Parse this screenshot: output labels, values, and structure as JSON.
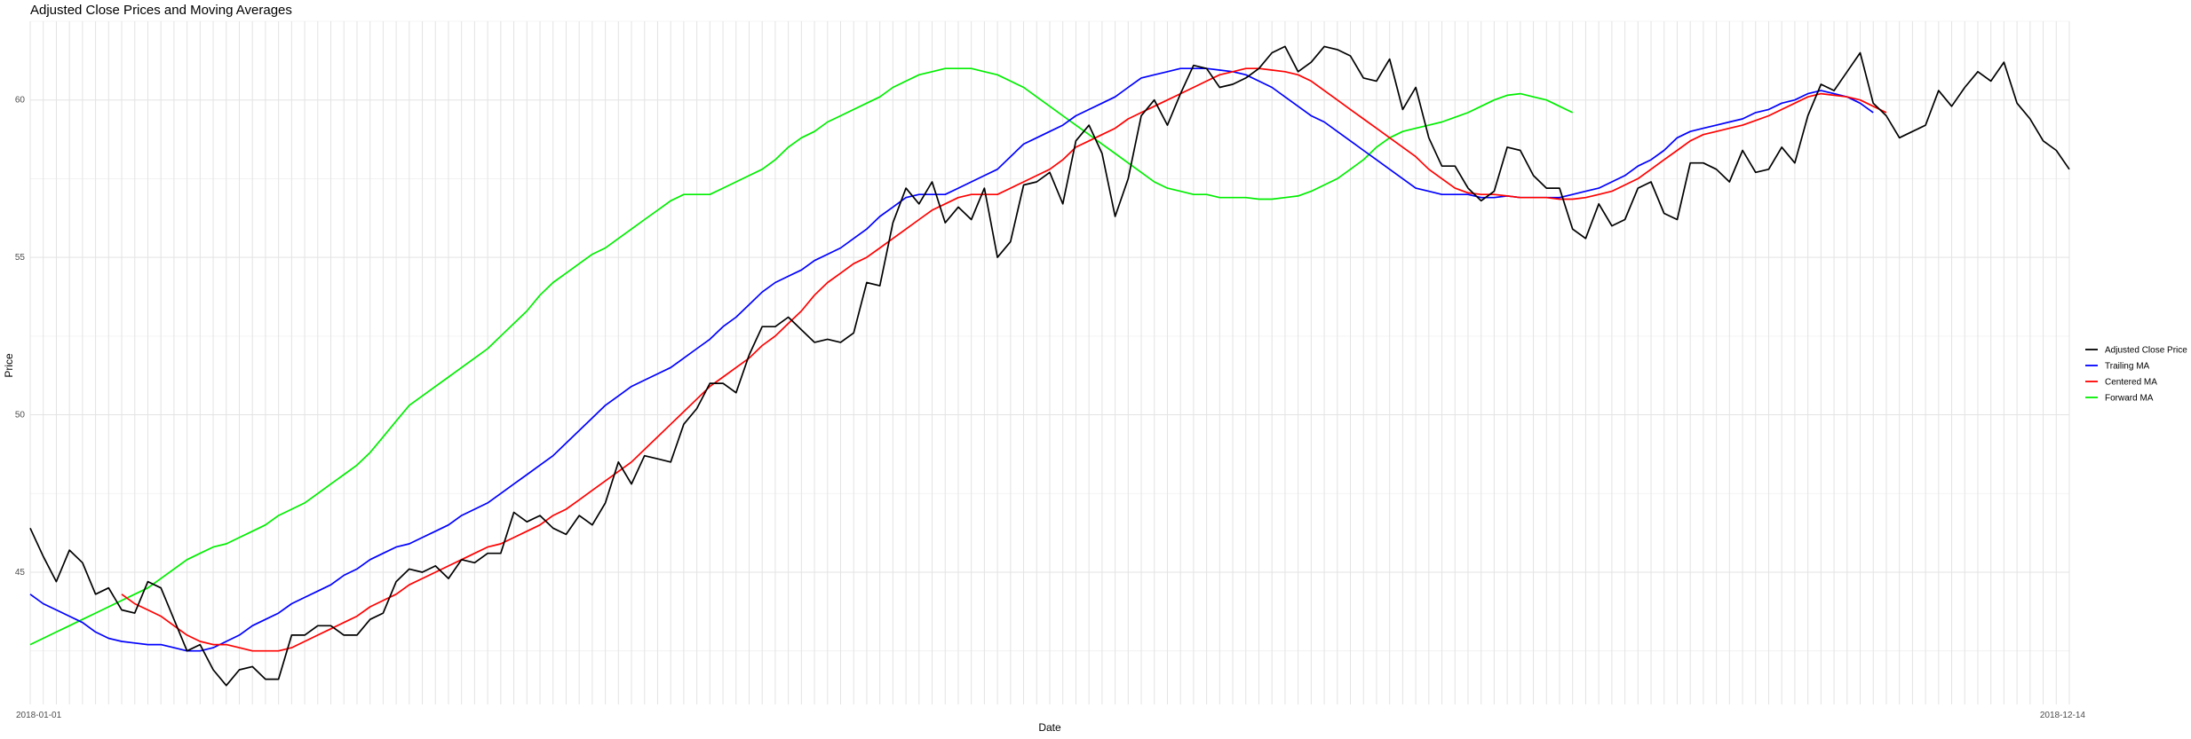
{
  "chart_data": {
    "type": "line",
    "title": "Adjusted Close Prices and Moving Averages",
    "xlabel": "Date",
    "ylabel": "Price",
    "ylim": [
      40.8,
      62.5
    ],
    "y_ticks": [
      45,
      50,
      55,
      60
    ],
    "x_tick_labels": [
      "2018-01-01",
      "2018-12-14"
    ],
    "grid": true,
    "legend_position": "right",
    "series": [
      {
        "name": "Adjusted Close Price",
        "color": "#000000",
        "values": [
          46.4,
          45.5,
          44.7,
          45.7,
          45.3,
          44.3,
          44.5,
          43.8,
          43.7,
          44.7,
          44.5,
          43.5,
          42.5,
          42.7,
          41.9,
          41.4,
          41.9,
          42.0,
          41.6,
          41.6,
          43.0,
          43.0,
          43.3,
          43.3,
          43.0,
          43.0,
          43.5,
          43.7,
          44.7,
          45.1,
          45.0,
          45.2,
          44.8,
          45.4,
          45.3,
          45.6,
          45.6,
          46.9,
          46.6,
          46.8,
          46.4,
          46.2,
          46.8,
          46.5,
          47.2,
          48.5,
          47.8,
          48.7,
          48.6,
          48.5,
          49.7,
          50.2,
          51.0,
          51.0,
          50.7,
          51.9,
          52.8,
          52.8,
          53.1,
          52.7,
          52.3,
          52.4,
          52.3,
          52.6,
          54.2,
          54.1,
          56.1,
          57.2,
          56.7,
          57.4,
          56.1,
          56.6,
          56.2,
          57.2,
          55.0,
          55.5,
          57.3,
          57.4,
          57.7,
          56.7,
          58.7,
          59.2,
          58.3,
          56.3,
          57.5,
          59.5,
          60.0,
          59.2,
          60.2,
          61.1,
          61.0,
          60.4,
          60.5,
          60.7,
          61.0,
          61.5,
          61.7,
          60.9,
          61.2,
          61.7,
          61.6,
          61.4,
          60.7,
          60.6,
          61.3,
          59.7,
          60.4,
          58.8,
          57.9,
          57.9,
          57.2,
          56.8,
          57.1,
          58.5,
          58.4,
          57.6,
          57.2,
          57.2,
          55.9,
          55.6,
          56.7,
          56.0,
          56.2,
          57.2,
          57.4,
          56.4,
          56.2,
          58.0,
          58.0,
          57.8,
          57.4,
          58.4,
          57.7,
          57.8,
          58.5,
          58.0,
          59.5,
          60.5,
          60.3,
          60.9,
          61.5,
          59.9,
          59.5,
          58.8,
          59.0,
          59.2,
          60.3,
          59.8,
          60.4,
          60.9,
          60.6,
          61.2,
          59.9,
          59.4,
          58.7,
          58.4,
          57.8
        ]
      },
      {
        "name": "Trailing MA",
        "color": "#0000ff",
        "values": [
          44.3,
          44.0,
          43.8,
          43.6,
          43.4,
          43.1,
          42.9,
          42.8,
          42.75,
          42.7,
          42.7,
          42.6,
          42.5,
          42.5,
          42.6,
          42.8,
          43.0,
          43.3,
          43.5,
          43.7,
          44.0,
          44.2,
          44.4,
          44.6,
          44.9,
          45.1,
          45.4,
          45.6,
          45.8,
          45.9,
          46.1,
          46.3,
          46.5,
          46.8,
          47.0,
          47.2,
          47.5,
          47.8,
          48.1,
          48.4,
          48.7,
          49.1,
          49.5,
          49.9,
          50.3,
          50.6,
          50.9,
          51.1,
          51.3,
          51.5,
          51.8,
          52.1,
          52.4,
          52.8,
          53.1,
          53.5,
          53.9,
          54.2,
          54.4,
          54.6,
          54.9,
          55.1,
          55.3,
          55.6,
          55.9,
          56.3,
          56.6,
          56.9,
          57.0,
          57.0,
          57.0,
          57.2,
          57.4,
          57.6,
          57.8,
          58.2,
          58.6,
          58.8,
          59.0,
          59.2,
          59.5,
          59.7,
          59.9,
          60.1,
          60.4,
          60.7,
          60.8,
          60.9,
          61.0,
          61.0,
          61.0,
          60.95,
          60.9,
          60.8,
          60.6,
          60.4,
          60.1,
          59.8,
          59.5,
          59.3,
          59.0,
          58.7,
          58.4,
          58.1,
          57.8,
          57.5,
          57.2,
          57.1,
          57.0,
          57.0,
          57.0,
          56.9,
          56.9,
          56.95,
          56.9,
          56.9,
          56.9,
          56.9,
          57.0,
          57.1,
          57.2,
          57.4,
          57.6,
          57.9,
          58.1,
          58.4,
          58.8,
          59.0,
          59.1,
          59.2,
          59.3,
          59.4,
          59.6,
          59.7,
          59.9,
          60.0,
          60.2,
          60.3,
          60.2,
          60.1,
          59.9,
          59.6
        ]
      },
      {
        "name": "Centered MA",
        "color": "#ff0000",
        "values": [
          null,
          null,
          null,
          null,
          null,
          null,
          null,
          44.3,
          44.0,
          43.8,
          43.6,
          43.3,
          43.0,
          42.8,
          42.7,
          42.7,
          42.6,
          42.5,
          42.5,
          42.5,
          42.6,
          42.8,
          43.0,
          43.2,
          43.4,
          43.6,
          43.9,
          44.1,
          44.3,
          44.6,
          44.8,
          45.0,
          45.2,
          45.4,
          45.6,
          45.8,
          45.9,
          46.1,
          46.3,
          46.5,
          46.8,
          47.0,
          47.3,
          47.6,
          47.9,
          48.2,
          48.5,
          48.9,
          49.3,
          49.7,
          50.1,
          50.5,
          50.9,
          51.2,
          51.5,
          51.8,
          52.2,
          52.5,
          52.9,
          53.3,
          53.8,
          54.2,
          54.5,
          54.8,
          55.0,
          55.3,
          55.6,
          55.9,
          56.2,
          56.5,
          56.7,
          56.9,
          57.0,
          57.0,
          57.0,
          57.2,
          57.4,
          57.6,
          57.8,
          58.1,
          58.5,
          58.7,
          58.9,
          59.1,
          59.4,
          59.6,
          59.8,
          60.0,
          60.2,
          60.4,
          60.6,
          60.8,
          60.9,
          61.0,
          61.0,
          60.95,
          60.9,
          60.8,
          60.6,
          60.3,
          60.0,
          59.7,
          59.4,
          59.1,
          58.8,
          58.5,
          58.2,
          57.8,
          57.5,
          57.2,
          57.05,
          57.0,
          57.0,
          56.95,
          56.9,
          56.9,
          56.9,
          56.85,
          56.85,
          56.9,
          57.0,
          57.1,
          57.3,
          57.5,
          57.8,
          58.1,
          58.4,
          58.7,
          58.9,
          59.0,
          59.1,
          59.2,
          59.35,
          59.5,
          59.7,
          59.9,
          60.1,
          60.2,
          60.15,
          60.1,
          60.0,
          59.8,
          59.6
        ]
      },
      {
        "name": "Forward MA",
        "color": "#00ee00",
        "values": [
          42.7,
          42.9,
          43.1,
          43.3,
          43.5,
          43.7,
          43.9,
          44.1,
          44.3,
          44.5,
          44.8,
          45.1,
          45.4,
          45.6,
          45.8,
          45.9,
          46.1,
          46.3,
          46.5,
          46.8,
          47.0,
          47.2,
          47.5,
          47.8,
          48.1,
          48.4,
          48.8,
          49.3,
          49.8,
          50.3,
          50.6,
          50.9,
          51.2,
          51.5,
          51.8,
          52.1,
          52.5,
          52.9,
          53.3,
          53.8,
          54.2,
          54.5,
          54.8,
          55.1,
          55.3,
          55.6,
          55.9,
          56.2,
          56.5,
          56.8,
          57.0,
          57.0,
          57.0,
          57.2,
          57.4,
          57.6,
          57.8,
          58.1,
          58.5,
          58.8,
          59.0,
          59.3,
          59.5,
          59.7,
          59.9,
          60.1,
          60.4,
          60.6,
          60.8,
          60.9,
          61.0,
          61.0,
          61.0,
          60.9,
          60.8,
          60.6,
          60.4,
          60.1,
          59.8,
          59.5,
          59.2,
          58.9,
          58.6,
          58.3,
          58.0,
          57.7,
          57.4,
          57.2,
          57.1,
          57.0,
          57.0,
          56.9,
          56.9,
          56.9,
          56.85,
          56.85,
          56.9,
          56.95,
          57.1,
          57.3,
          57.5,
          57.8,
          58.1,
          58.5,
          58.8,
          59.0,
          59.1,
          59.2,
          59.3,
          59.45,
          59.6,
          59.8,
          60.0,
          60.15,
          60.2,
          60.1,
          60.0,
          59.8,
          59.6
        ]
      }
    ]
  }
}
